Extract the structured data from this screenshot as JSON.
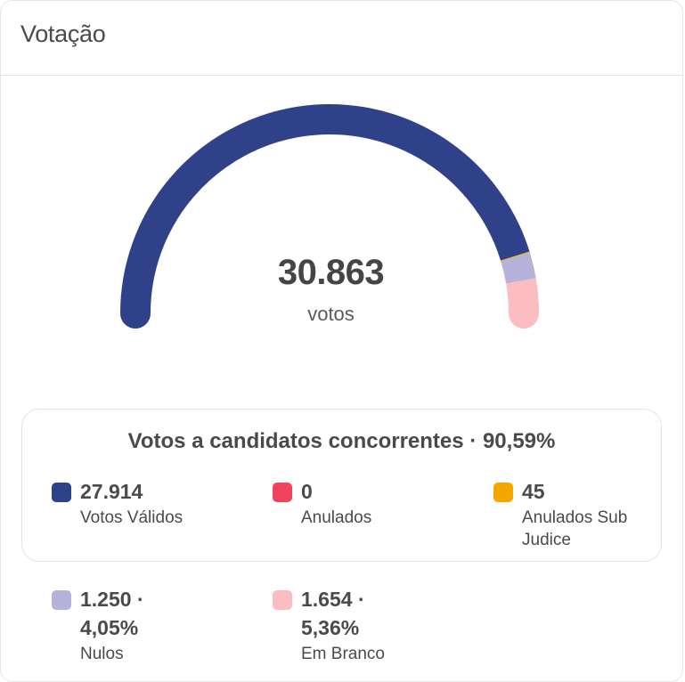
{
  "header": {
    "title": "Votação"
  },
  "gauge": {
    "total": "30.863",
    "unit": "votos",
    "segments": [
      {
        "name": "validos",
        "value": 27914,
        "color": "#2f4189"
      },
      {
        "name": "anulados",
        "value": 0,
        "color": "#f0435e"
      },
      {
        "name": "sub_judice",
        "value": 45,
        "color": "#f5a700"
      },
      {
        "name": "nulos",
        "value": 1250,
        "color": "#b5b3d9"
      },
      {
        "name": "branco",
        "value": 1654,
        "color": "#fbbcc2"
      }
    ]
  },
  "candidates_box": {
    "title": "Votos a candidatos concorrentes · 90,59%",
    "items": [
      {
        "value": "27.914",
        "label": "Votos Válidos",
        "color": "#2f4189"
      },
      {
        "value": "0",
        "label": "Anulados",
        "color": "#f0435e"
      },
      {
        "value": "45",
        "label": "Anulados Sub Judice",
        "color": "#f5a700"
      }
    ]
  },
  "other": [
    {
      "value_line1": "1.250 ·",
      "value_line2": "4,05%",
      "label": "Nulos",
      "color": "#b5b3d9"
    },
    {
      "value_line1": "1.654 ·",
      "value_line2": "5,36%",
      "label": "Em Branco",
      "color": "#fbbcc2"
    }
  ]
}
